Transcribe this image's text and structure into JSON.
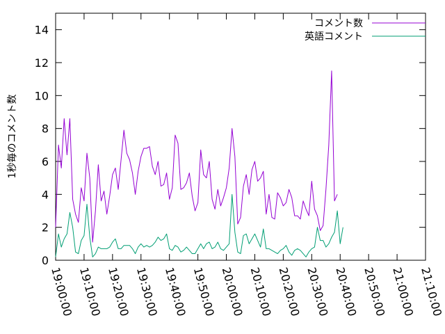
{
  "chart_data": {
    "type": "line",
    "title": "",
    "xlabel": "",
    "ylabel": "1秒毎のコメント数",
    "xlim": [
      "19:00:00",
      "21:10:00"
    ],
    "ylim": [
      0,
      15
    ],
    "yticks": [
      0,
      2,
      4,
      6,
      8,
      10,
      12,
      14
    ],
    "xticks": [
      "19:00:00",
      "19:10:00",
      "19:20:00",
      "19:30:00",
      "19:40:00",
      "19:50:00",
      "20:00:00",
      "20:10:00",
      "20:20:00",
      "20:30:00",
      "20:40:00",
      "20:50:00",
      "21:00:00",
      "21:10:00"
    ],
    "grid": false,
    "legend": "top-right",
    "sample_interval_minutes": 1,
    "series": [
      {
        "name": "コメント数",
        "color": "#9400d3",
        "values": [
          2.0,
          7.0,
          5.6,
          8.6,
          6.4,
          8.6,
          3.7,
          2.8,
          2.3,
          4.4,
          3.6,
          6.5,
          5.0,
          1.1,
          3.0,
          5.8,
          3.6,
          4.2,
          2.8,
          3.9,
          5.2,
          5.6,
          4.3,
          6.1,
          7.9,
          6.5,
          6.1,
          5.3,
          4.0,
          5.4,
          6.3,
          6.8,
          6.8,
          6.9,
          5.7,
          5.2,
          6.0,
          4.5,
          4.6,
          5.3,
          3.7,
          4.4,
          7.6,
          7.1,
          4.3,
          4.4,
          4.7,
          5.3,
          3.9,
          3.0,
          3.5,
          6.7,
          5.2,
          5.0,
          6.0,
          3.7,
          3.1,
          4.3,
          3.3,
          3.8,
          4.4,
          5.6,
          8.0,
          6.3,
          2.2,
          2.6,
          4.5,
          5.2,
          4.0,
          5.5,
          6.0,
          4.8,
          5.0,
          5.4,
          2.8,
          4.0,
          2.6,
          2.5,
          4.1,
          3.8,
          3.3,
          3.5,
          4.3,
          3.8,
          2.7,
          2.7,
          2.5,
          3.6,
          3.1,
          2.7,
          4.8,
          3.1,
          2.7,
          1.8,
          2.1,
          4.3,
          7.0,
          11.5,
          3.6,
          4.0
        ]
      },
      {
        "name": "英語コメント",
        "color": "#009e73",
        "values": [
          0.2,
          1.6,
          0.8,
          1.3,
          1.6,
          2.9,
          2.0,
          0.5,
          0.4,
          1.2,
          1.5,
          3.4,
          1.4,
          0.2,
          0.4,
          0.8,
          0.7,
          0.7,
          0.7,
          0.8,
          1.1,
          1.3,
          0.7,
          0.7,
          0.9,
          0.9,
          0.9,
          0.7,
          0.4,
          0.8,
          1.0,
          0.8,
          0.9,
          0.8,
          0.9,
          1.1,
          1.4,
          1.2,
          1.3,
          1.6,
          0.7,
          0.6,
          0.9,
          0.8,
          0.5,
          0.6,
          0.8,
          0.6,
          0.4,
          0.4,
          0.7,
          1.0,
          0.7,
          1.0,
          1.1,
          0.7,
          0.8,
          1.1,
          0.7,
          0.6,
          0.8,
          1.0,
          4.0,
          1.7,
          0.5,
          0.4,
          1.5,
          1.6,
          1.0,
          1.3,
          1.6,
          1.2,
          0.8,
          1.9,
          0.7,
          0.7,
          0.6,
          0.5,
          0.4,
          0.6,
          0.7,
          0.9,
          0.5,
          0.3,
          0.6,
          0.7,
          0.6,
          0.4,
          0.2,
          0.5,
          0.7,
          0.8,
          2.0,
          1.2,
          1.2,
          0.8,
          1.0,
          1.4,
          1.7,
          3.0,
          1.0,
          2.0
        ]
      }
    ]
  }
}
